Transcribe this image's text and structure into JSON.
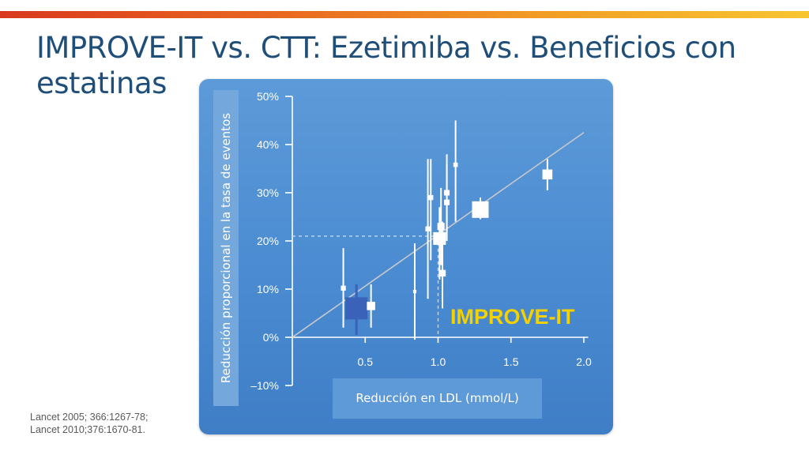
{
  "slide": {
    "title": "IMPROVE-IT vs. CTT: Ezetimiba vs. Beneficios con estatinas",
    "sources": [
      "Lancet 2005; 366:1267-78;",
      "Lancet 2010;376:1670-81."
    ]
  },
  "colors": {
    "accent_bar": "#e9691f",
    "title": "#1f4e79",
    "panel": "#4a8bd1",
    "improve_it": "#f6d100",
    "improve_it_marker": "#3a62b8",
    "marker": "#ffffff"
  },
  "chart_data": {
    "type": "scatter",
    "title": "",
    "xlabel": "Reducción en LDL (mmol/L)",
    "ylabel": "Reducción proporcional en la tasa de eventos",
    "x_ticks": [
      {
        "value": 0.5,
        "label": "0.5"
      },
      {
        "value": 1.0,
        "label": "1.0"
      },
      {
        "value": 1.5,
        "label": "1.5"
      },
      {
        "value": 2.0,
        "label": "2.0"
      }
    ],
    "y_ticks": [
      {
        "value": 50,
        "label": "50%"
      },
      {
        "value": 40,
        "label": "40%"
      },
      {
        "value": 30,
        "label": "30%"
      },
      {
        "value": 20,
        "label": "20%"
      },
      {
        "value": 10,
        "label": "10%"
      },
      {
        "value": 0,
        "label": "0%"
      },
      {
        "value": -10,
        "label": "–10%"
      }
    ],
    "xlim": [
      0,
      2.05
    ],
    "ylim": [
      -10,
      50
    ],
    "grid": false,
    "regression_line": {
      "x": [
        0,
        2.0
      ],
      "y": [
        0,
        42.5
      ]
    },
    "reference": {
      "x": 1.0,
      "y": 21
    },
    "annotation": "IMPROVE-IT",
    "points": [
      {
        "x": 0.35,
        "y": 10.2,
        "lo": 2,
        "hi": 18.5,
        "size": 0.9
      },
      {
        "x": 0.44,
        "y": 6.0,
        "lo": 0.5,
        "hi": 11,
        "size": 4.0,
        "highlight": true
      },
      {
        "x": 0.54,
        "y": 6.5,
        "lo": 2,
        "hi": 11,
        "size": 1.5
      },
      {
        "x": 0.84,
        "y": 9.5,
        "lo": -0.5,
        "hi": 19.5,
        "size": 0.6
      },
      {
        "x": 0.93,
        "y": 22.5,
        "lo": 8,
        "hi": 37,
        "size": 0.9
      },
      {
        "x": 0.95,
        "y": 29.0,
        "lo": 16,
        "hi": 37,
        "size": 0.9
      },
      {
        "x": 1.01,
        "y": 20.5,
        "lo": 12,
        "hi": 27,
        "size": 2.3
      },
      {
        "x": 1.02,
        "y": 23.0,
        "lo": 15,
        "hi": 31,
        "size": 1.3
      },
      {
        "x": 1.03,
        "y": 13.3,
        "lo": 6,
        "hi": 24,
        "size": 1.2
      },
      {
        "x": 1.06,
        "y": 28.0,
        "lo": 20,
        "hi": 36,
        "size": 1.0
      },
      {
        "x": 1.06,
        "y": 30.0,
        "lo": 21,
        "hi": 38,
        "size": 1.0
      },
      {
        "x": 1.12,
        "y": 35.8,
        "lo": 24,
        "hi": 45,
        "size": 0.8
      },
      {
        "x": 1.29,
        "y": 26.5,
        "lo": 24.5,
        "hi": 29,
        "size": 3.0
      },
      {
        "x": 1.75,
        "y": 33.8,
        "lo": 30.5,
        "hi": 37,
        "size": 1.8
      }
    ]
  }
}
